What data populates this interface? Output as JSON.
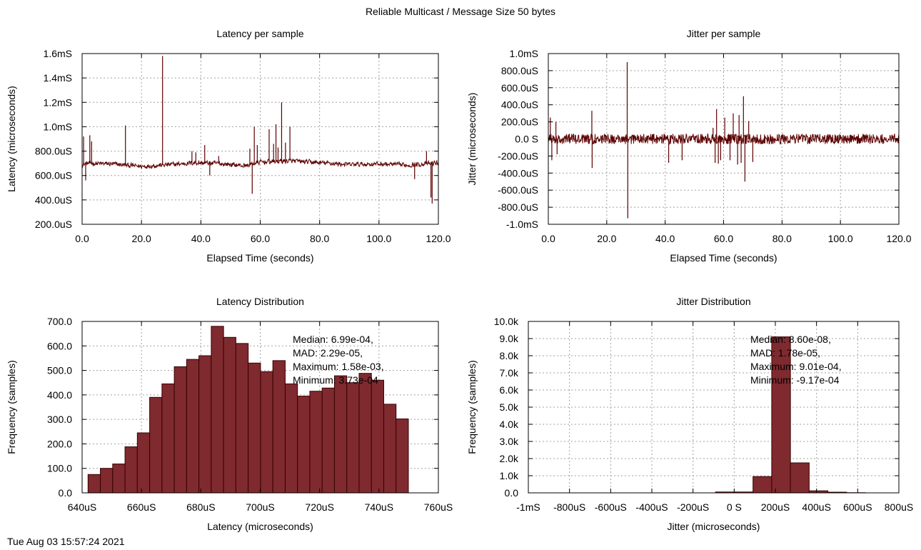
{
  "page": {
    "title": "Reliable Multicast / Message Size 50 bytes",
    "timestamp": "Tue Aug 03 15:57:24 2021"
  },
  "colors": {
    "line": "#5c0000",
    "bar_fill": "#7f2a2f",
    "bar_stroke": "#3a0000",
    "grid": "#a0a0a0"
  },
  "chart_data": [
    {
      "type": "line",
      "title": "Latency per sample",
      "xlabel": "Elapsed Time (seconds)",
      "ylabel": "Latency (microseconds)",
      "xlim": [
        0,
        120
      ],
      "ylim": [
        200,
        1600
      ],
      "x_ticks": [
        0,
        20,
        40,
        60,
        80,
        100,
        120
      ],
      "x_tick_labels": [
        "0.0",
        "20.0",
        "40.0",
        "60.0",
        "80.0",
        "100.0",
        "120.0"
      ],
      "y_ticks": [
        200,
        400,
        600,
        800,
        1000,
        1200,
        1400,
        1600
      ],
      "y_tick_labels": [
        "200.0uS",
        "400.0uS",
        "600.0uS",
        "800.0uS",
        "1.0mS",
        "1.2mS",
        "1.4mS",
        "1.6mS"
      ],
      "grid": true,
      "series": [
        {
          "baseline": [
            [
              0,
              690
            ],
            [
              2,
              700
            ],
            [
              10,
              695
            ],
            [
              20,
              675
            ],
            [
              30,
              690
            ],
            [
              38,
              705
            ],
            [
              45,
              700
            ],
            [
              55,
              680
            ],
            [
              60,
              710
            ],
            [
              70,
              720
            ],
            [
              80,
              705
            ],
            [
              90,
              690
            ],
            [
              100,
              695
            ],
            [
              110,
              685
            ],
            [
              118,
              700
            ],
            [
              120,
              705
            ]
          ],
          "noise": 25,
          "spikes": [
            [
              0.5,
              920
            ],
            [
              1.2,
              560
            ],
            [
              2.6,
              930
            ],
            [
              3.2,
              880
            ],
            [
              14.6,
              1010
            ],
            [
              27.1,
              1580
            ],
            [
              37.0,
              800
            ],
            [
              38.3,
              790
            ],
            [
              41.3,
              850
            ],
            [
              43.0,
              600
            ],
            [
              46.0,
              760
            ],
            [
              56.5,
              820
            ],
            [
              57.3,
              450
            ],
            [
              58.0,
              1000
            ],
            [
              59.0,
              850
            ],
            [
              63.0,
              980
            ],
            [
              64.5,
              860
            ],
            [
              65.3,
              1020
            ],
            [
              66.0,
              830
            ],
            [
              67.2,
              1200
            ],
            [
              68.5,
              870
            ],
            [
              70.0,
              1000
            ],
            [
              112.0,
              570
            ],
            [
              116.0,
              800
            ],
            [
              117.5,
              420
            ],
            [
              117.9,
              370
            ]
          ]
        }
      ]
    },
    {
      "type": "line",
      "title": "Jitter per sample",
      "xlabel": "Elapsed Time (seconds)",
      "ylabel": "Jitter (microseconds)",
      "xlim": [
        0,
        120
      ],
      "ylim": [
        -1000,
        1000
      ],
      "x_ticks": [
        0,
        20,
        40,
        60,
        80,
        100,
        120
      ],
      "x_tick_labels": [
        "0.0",
        "20.0",
        "40.0",
        "60.0",
        "80.0",
        "100.0",
        "120.0"
      ],
      "y_ticks": [
        -1000,
        -800,
        -600,
        -400,
        -200,
        0,
        200,
        400,
        600,
        800,
        1000
      ],
      "y_tick_labels": [
        "-1.0mS",
        "-800.0uS",
        "-600.0uS",
        "-400.0uS",
        "-200.0uS",
        "0.0 S",
        "200.0uS",
        "400.0uS",
        "600.0uS",
        "800.0uS",
        "1.0mS"
      ],
      "grid": true,
      "series": [
        {
          "baseline": [
            [
              0,
              0
            ],
            [
              120,
              0
            ]
          ],
          "noise": 60,
          "spikes": [
            [
              0.7,
              250
            ],
            [
              1.2,
              -250
            ],
            [
              2.6,
              200
            ],
            [
              3.0,
              -180
            ],
            [
              14.9,
              330
            ],
            [
              15.0,
              -340
            ],
            [
              27.0,
              900
            ],
            [
              27.2,
              -930
            ],
            [
              41.2,
              -280
            ],
            [
              45.8,
              -250
            ],
            [
              56.4,
              130
            ],
            [
              57.1,
              -280
            ],
            [
              57.6,
              350
            ],
            [
              58.2,
              -290
            ],
            [
              59.0,
              -250
            ],
            [
              60.4,
              250
            ],
            [
              62.2,
              -250
            ],
            [
              63.3,
              300
            ],
            [
              64.8,
              -300
            ],
            [
              65.3,
              280
            ],
            [
              66.0,
              -280
            ],
            [
              66.8,
              500
            ],
            [
              67.3,
              -500
            ],
            [
              68.6,
              210
            ],
            [
              70.0,
              -270
            ]
          ]
        }
      ]
    },
    {
      "type": "bar",
      "title": "Latency Distribution",
      "xlabel": "Latency (microseconds)",
      "ylabel": "Frequency (samples)",
      "xlim": [
        640,
        760
      ],
      "ylim": [
        0,
        700
      ],
      "x_ticks": [
        640,
        660,
        680,
        700,
        720,
        740,
        760
      ],
      "x_tick_labels": [
        "640uS",
        "660uS",
        "680uS",
        "700uS",
        "720uS",
        "740uS",
        "760uS"
      ],
      "y_ticks": [
        0,
        100,
        200,
        300,
        400,
        500,
        600,
        700
      ],
      "y_tick_labels": [
        "0.0",
        "100.0",
        "200.0",
        "300.0",
        "400.0",
        "500.0",
        "600.0",
        "700.0"
      ],
      "grid": true,
      "bin_start": 642,
      "bin_width": 4.15,
      "values": [
        75,
        100,
        118,
        188,
        245,
        390,
        445,
        515,
        545,
        560,
        680,
        635,
        610,
        530,
        495,
        540,
        445,
        395,
        415,
        428,
        478,
        450,
        488,
        460,
        362,
        302
      ],
      "annotation": [
        "Median: 6.99e-04,",
        "MAD: 2.29e-05,",
        "Maximum: 1.58e-03,",
        "Minimum: 3.73e-04"
      ]
    },
    {
      "type": "bar",
      "title": "Jitter Distribution",
      "xlabel": "Jitter (microseconds)",
      "ylabel": "Frequency (samples)",
      "xlim": [
        -1000,
        800
      ],
      "ylim": [
        0,
        10000
      ],
      "x_ticks": [
        -1000,
        -800,
        -600,
        -400,
        -200,
        0,
        200,
        400,
        600,
        800
      ],
      "x_tick_labels": [
        "-1mS",
        "-800uS",
        "-600uS",
        "-400uS",
        "-200uS",
        "0 S",
        "200uS",
        "400uS",
        "600uS",
        "800uS"
      ],
      "y_ticks": [
        0,
        1000,
        2000,
        3000,
        4000,
        5000,
        6000,
        7000,
        8000,
        9000,
        10000
      ],
      "y_tick_labels": [
        "0.0",
        "1.0k",
        "2.0k",
        "3.0k",
        "4.0k",
        "5.0k",
        "6.0k",
        "7.0k",
        "8.0k",
        "9.0k",
        "10.0k"
      ],
      "grid": true,
      "bin_start": -1000,
      "bin_width": 90.95,
      "values": [
        0,
        0,
        0,
        0,
        0,
        0,
        0,
        0,
        0,
        0,
        50,
        50,
        950,
        9100,
        1750,
        120,
        40,
        10,
        0,
        0
      ],
      "annotation": [
        "Median: 8.60e-08,",
        "MAD: 1.78e-05,",
        "Maximum: 9.01e-04,",
        "Minimum: -9.17e-04"
      ]
    }
  ]
}
